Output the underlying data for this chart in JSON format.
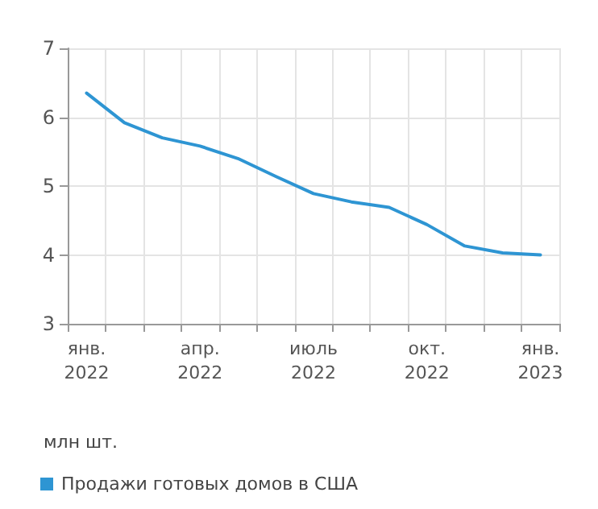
{
  "chart_data": {
    "type": "line",
    "ylabel": "млн шт.",
    "categories": [
      "янв.\n2022",
      null,
      null,
      "апр.\n2022",
      null,
      null,
      "июль\n2022",
      null,
      null,
      "окт.\n2022",
      null,
      null,
      "янв.\n2023"
    ],
    "series": [
      {
        "name": "Продажи готовых домов в США",
        "color": "#2e95d3",
        "values": [
          6.35,
          5.92,
          5.7,
          5.58,
          5.4,
          5.14,
          4.89,
          4.77,
          4.69,
          4.44,
          4.13,
          4.03,
          4.0
        ]
      }
    ],
    "ylim": [
      3,
      7
    ],
    "yticks": [
      3,
      4,
      5,
      6,
      7
    ],
    "grid": true,
    "legend": "bottom left",
    "marker": "none",
    "line_style": "solid"
  }
}
